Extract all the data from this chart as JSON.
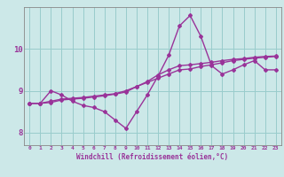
{
  "xlabel": "Windchill (Refroidissement éolien,°C)",
  "bg_color": "#cce8e8",
  "grid_color": "#99cccc",
  "line_color": "#993399",
  "xlim": [
    -0.5,
    23.5
  ],
  "ylim": [
    7.7,
    11.0
  ],
  "yticks": [
    8,
    9,
    10
  ],
  "xticks": [
    0,
    1,
    2,
    3,
    4,
    5,
    6,
    7,
    8,
    9,
    10,
    11,
    12,
    13,
    14,
    15,
    16,
    17,
    18,
    19,
    20,
    21,
    22,
    23
  ],
  "curve1_y": [
    8.7,
    8.7,
    8.75,
    8.8,
    8.82,
    8.84,
    8.87,
    8.9,
    8.93,
    9.0,
    9.1,
    9.2,
    9.3,
    9.4,
    9.5,
    9.52,
    9.58,
    9.62,
    9.67,
    9.72,
    9.75,
    9.78,
    9.8,
    9.82
  ],
  "curve2_y": [
    8.7,
    8.7,
    9.0,
    8.9,
    8.75,
    8.65,
    8.6,
    8.5,
    8.3,
    8.1,
    8.5,
    8.9,
    9.35,
    9.85,
    10.55,
    10.8,
    10.3,
    9.6,
    9.4,
    9.5,
    9.62,
    9.72,
    9.5,
    9.5
  ],
  "curve3_y": [
    8.7,
    8.7,
    8.72,
    8.78,
    8.8,
    8.82,
    8.85,
    8.88,
    8.92,
    8.97,
    9.1,
    9.22,
    9.38,
    9.5,
    9.6,
    9.62,
    9.65,
    9.68,
    9.72,
    9.75,
    9.77,
    9.8,
    9.82,
    9.83
  ]
}
